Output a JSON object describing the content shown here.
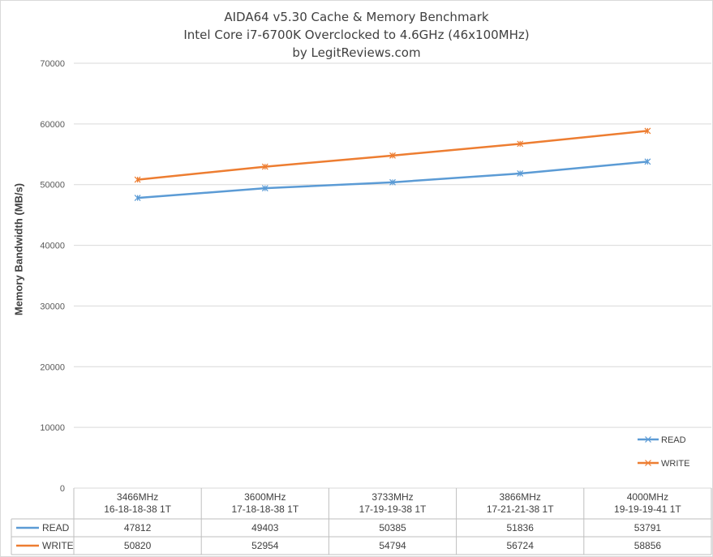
{
  "chart_data": {
    "type": "line",
    "title": "AIDA64 v5.30 Cache & Memory Benchmark",
    "subtitle": "Intel Core i7-6700K Overclocked to 4.6GHz (46x100MHz)",
    "subtitle2": "by LegitReviews.com",
    "xlabel": "",
    "ylabel": "Memory Bandwidth (MB/s)",
    "ylim": [
      0,
      70000
    ],
    "yticks": [
      0,
      10000,
      20000,
      30000,
      40000,
      50000,
      60000,
      70000
    ],
    "grid": true,
    "legend_position": "bottom-right",
    "categories": [
      [
        "3466MHz",
        "16-18-18-38 1T"
      ],
      [
        "3600MHz",
        "17-18-18-38 1T"
      ],
      [
        "3733MHz",
        "17-19-19-38 1T"
      ],
      [
        "3866MHz",
        "17-21-21-38 1T"
      ],
      [
        "4000MHz",
        "19-19-19-41 1T"
      ]
    ],
    "series": [
      {
        "name": "READ",
        "color": "#5b9bd5",
        "values": [
          47812,
          49403,
          50385,
          51836,
          53791
        ]
      },
      {
        "name": "WRITE",
        "color": "#ed7d31",
        "values": [
          50820,
          52954,
          54794,
          56724,
          58856
        ]
      }
    ]
  }
}
